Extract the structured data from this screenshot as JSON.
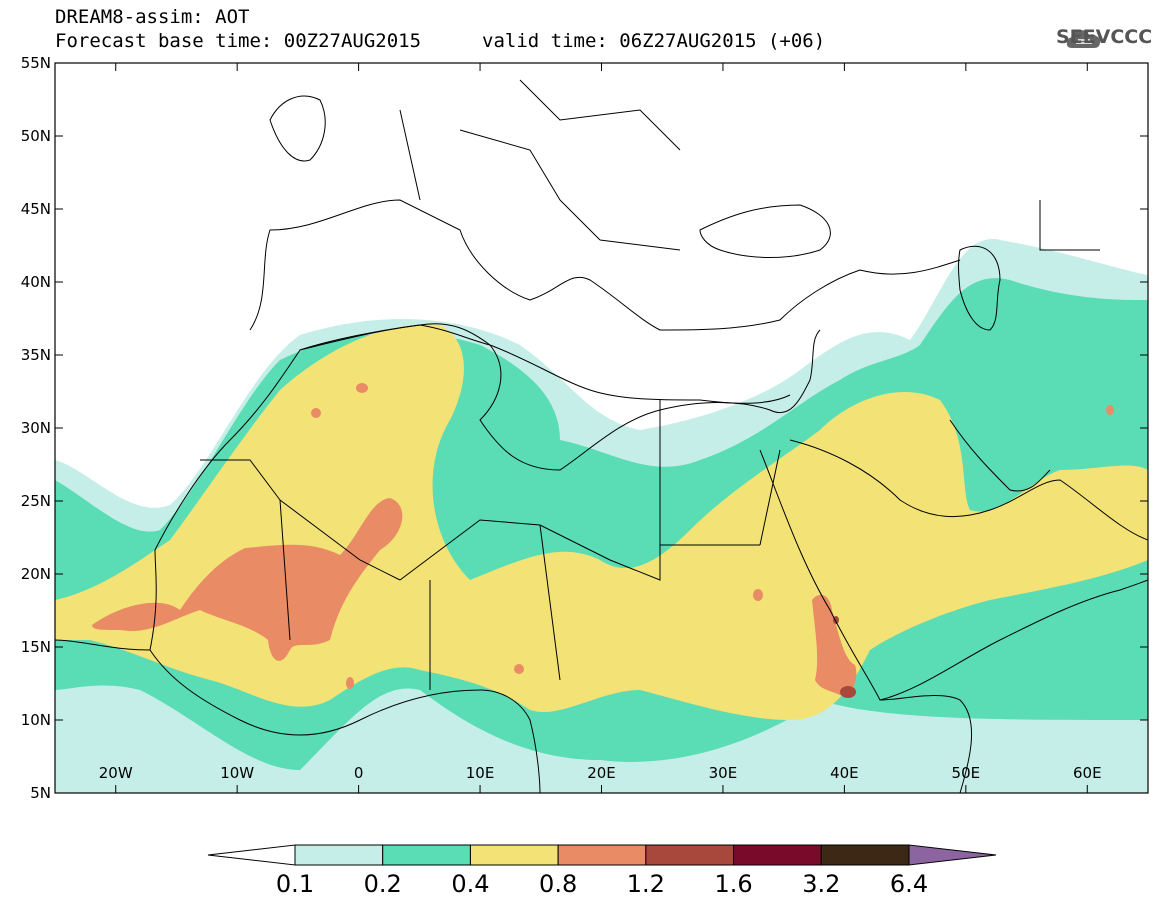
{
  "header": {
    "line1": "DREAM8-assim: AOT",
    "line2": "Forecast base time: 00Z27AUG2015",
    "line3": "valid time: 06Z27AUG2015 (+06)",
    "logo_text": "SEEVCCC"
  },
  "map": {
    "lat_labels": [
      "55N",
      "50N",
      "45N",
      "40N",
      "35N",
      "30N",
      "25N",
      "20N",
      "15N",
      "10N",
      "5N"
    ],
    "lon_labels": [
      "20W",
      "10W",
      "0",
      "10E",
      "20E",
      "30E",
      "40E",
      "50E",
      "60E"
    ],
    "extent": {
      "lon": [
        -25,
        65
      ],
      "lat": [
        5,
        55
      ]
    },
    "field": "Aerosol optical thickness (dust)"
  },
  "colorbar": {
    "labels": [
      "0.1",
      "0.2",
      "0.4",
      "0.8",
      "1.2",
      "1.6",
      "3.2",
      "6.4"
    ],
    "colors": [
      "#ffffff",
      "#c6eee8",
      "#5adcb4",
      "#f3e377",
      "#e98b64",
      "#a8483c",
      "#7a0a2a",
      "#3c2814",
      "#8c64a0"
    ]
  }
}
